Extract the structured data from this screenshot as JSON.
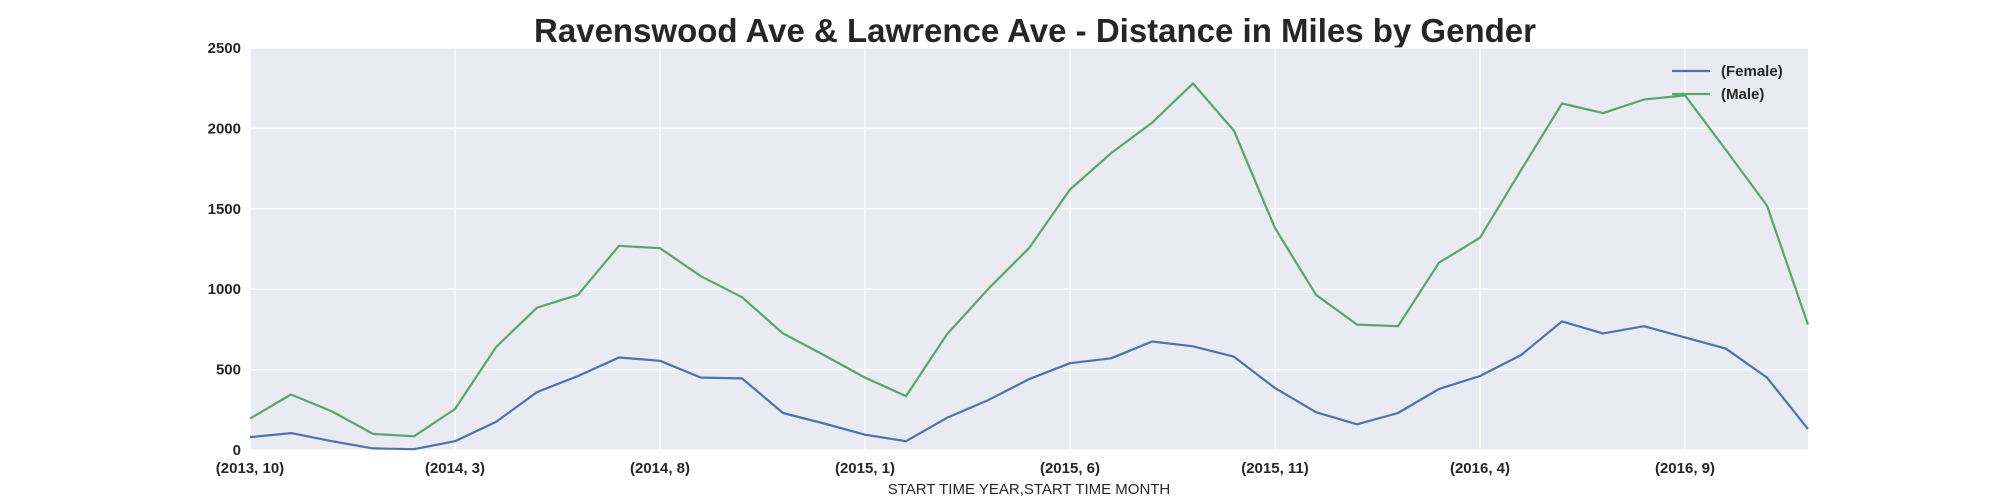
{
  "chart_data": {
    "type": "line",
    "title": "Ravenswood Ave & Lawrence Ave - Distance in Miles by Gender",
    "xlabel": "START TIME YEAR,START TIME MONTH",
    "ylabel": "",
    "ylim": [
      0,
      2500
    ],
    "yticks": [
      "0",
      "500",
      "1000",
      "1500",
      "2000",
      "2500"
    ],
    "xtick_labels": [
      "(2013, 10)",
      "(2014, 3)",
      "(2014, 8)",
      "(2015, 1)",
      "(2015, 6)",
      "(2015, 11)",
      "(2016, 4)",
      "(2016, 9)"
    ],
    "xtick_index": [
      0,
      5,
      10,
      15,
      20,
      25,
      30,
      35
    ],
    "x": [
      "(2013, 10)",
      "(2013, 11)",
      "(2013, 12)",
      "(2014, 1)",
      "(2014, 2)",
      "(2014, 3)",
      "(2014, 4)",
      "(2014, 5)",
      "(2014, 6)",
      "(2014, 7)",
      "(2014, 8)",
      "(2014, 9)",
      "(2014, 10)",
      "(2014, 11)",
      "(2014, 12)",
      "(2015, 1)",
      "(2015, 2)",
      "(2015, 3)",
      "(2015, 4)",
      "(2015, 5)",
      "(2015, 6)",
      "(2015, 7)",
      "(2015, 8)",
      "(2015, 9)",
      "(2015, 10)",
      "(2015, 11)",
      "(2015, 12)",
      "(2016, 1)",
      "(2016, 2)",
      "(2016, 3)",
      "(2016, 4)",
      "(2016, 5)",
      "(2016, 6)",
      "(2016, 7)",
      "(2016, 8)",
      "(2016, 9)",
      "(2016, 10)",
      "(2016, 11)",
      "(2016, 12)"
    ],
    "grid": true,
    "legend_position": "top-right",
    "series": [
      {
        "name": "(Female)",
        "color": "#4c72b0",
        "values": [
          80,
          105,
          55,
          10,
          5,
          55,
          175,
          360,
          460,
          575,
          555,
          450,
          445,
          230,
          165,
          95,
          55,
          200,
          310,
          440,
          540,
          570,
          675,
          645,
          580,
          385,
          235,
          160,
          230,
          380,
          460,
          590,
          800,
          725,
          770,
          700,
          630,
          450,
          130
        ]
      },
      {
        "name": "(Male)",
        "color": "#55a868",
        "values": [
          195,
          345,
          240,
          100,
          85,
          255,
          640,
          885,
          965,
          1270,
          1255,
          1080,
          950,
          725,
          590,
          450,
          335,
          720,
          1000,
          1255,
          1620,
          1845,
          2035,
          2280,
          1985,
          1380,
          965,
          780,
          770,
          1165,
          1320,
          1740,
          2155,
          2095,
          2180,
          2205,
          1865,
          1520,
          780
        ]
      }
    ]
  }
}
